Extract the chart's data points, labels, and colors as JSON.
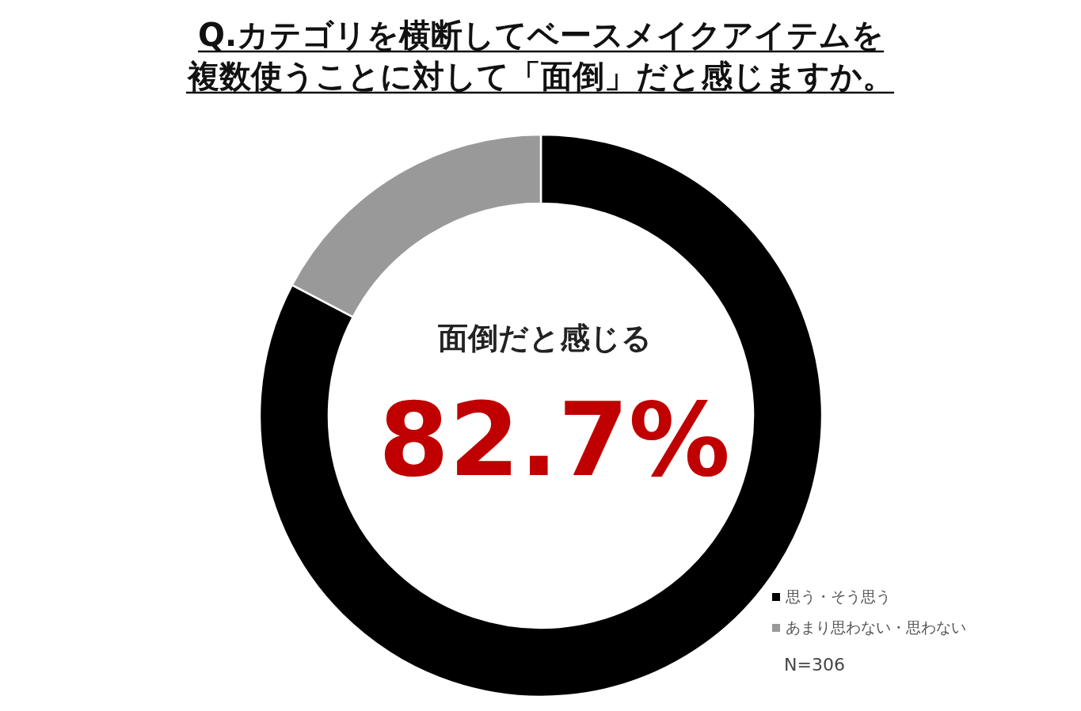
{
  "chart_data": {
    "type": "donut",
    "title": "Q.カテゴリを横断してベースメイクアイテムを複数使うことに対して「面倒」だと感じますか。",
    "categories": [
      "思う・そう思う",
      "あまり思わない・思わない"
    ],
    "values": [
      82.7,
      17.3
    ],
    "colors": [
      "#000000",
      "#999999"
    ],
    "legend": "bottom right",
    "annotations": [
      "面倒だと感じる",
      "82.7%",
      "N=306"
    ]
  }
}
